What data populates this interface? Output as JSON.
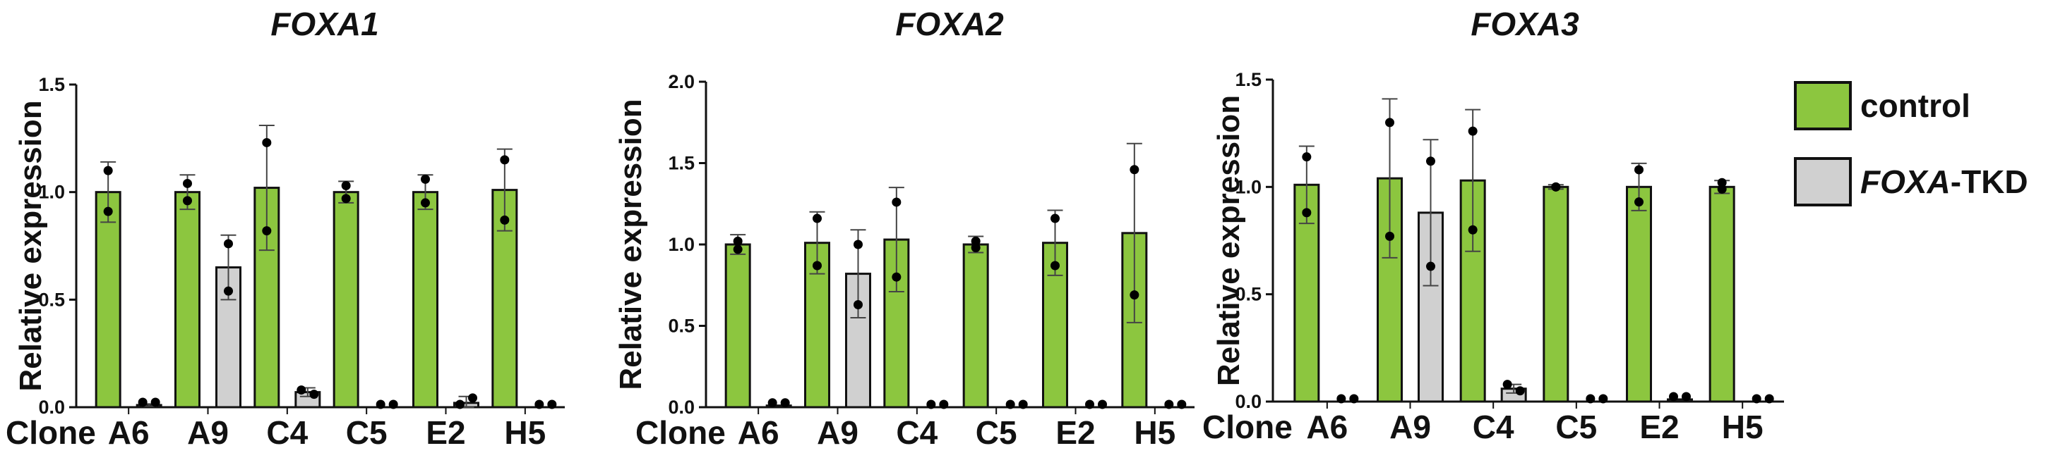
{
  "colors": {
    "control": "#8cc63f",
    "treatment": "#d0d0d0",
    "outline": "#111111"
  },
  "legend": {
    "items": [
      {
        "key": "control",
        "label_prefix": "",
        "label_suffix": "control"
      },
      {
        "key": "treatment",
        "label_prefix": "FOXA",
        "label_suffix": "-TKD"
      }
    ]
  },
  "chart_data": [
    {
      "type": "bar",
      "title": "FOXA1",
      "ylabel": "Relative expression",
      "xlabel": "Clone",
      "ylim": [
        0,
        1.5
      ],
      "yticks": [
        "0.0",
        "0.5",
        "1.0",
        "1.5"
      ],
      "categories": [
        "A6",
        "A9",
        "C4",
        "C5",
        "E2",
        "H5"
      ],
      "series": [
        {
          "name": "control",
          "values": [
            1.0,
            1.0,
            1.02,
            1.0,
            1.0,
            1.01
          ],
          "err": [
            0.14,
            0.08,
            0.29,
            0.05,
            0.08,
            0.19
          ],
          "points": [
            [
              1.1,
              0.91
            ],
            [
              1.04,
              0.96
            ],
            [
              1.23,
              0.82
            ],
            [
              1.03,
              0.97
            ],
            [
              1.06,
              0.95
            ],
            [
              1.15,
              0.87
            ]
          ]
        },
        {
          "name": "FOXA-TKD",
          "values": [
            0.01,
            0.65,
            0.07,
            0.0,
            0.02,
            0.0
          ],
          "err": [
            0.005,
            0.15,
            0.02,
            0.0,
            0.03,
            0.0
          ],
          "points": [
            [
              0.01,
              0.01
            ],
            [
              0.76,
              0.54
            ],
            [
              0.08,
              0.06
            ],
            [
              0.0,
              0.0
            ],
            [
              0.0,
              0.03
            ],
            [
              0.0,
              0.0
            ]
          ]
        }
      ]
    },
    {
      "type": "bar",
      "title": "FOXA2",
      "ylabel": "Relative expression",
      "xlabel": "Clone",
      "ylim": [
        0,
        2.0
      ],
      "yticks": [
        "0.0",
        "0.5",
        "1.0",
        "1.5",
        "2.0"
      ],
      "categories": [
        "A6",
        "A9",
        "C4",
        "C5",
        "E2",
        "H5"
      ],
      "series": [
        {
          "name": "control",
          "values": [
            1.0,
            1.01,
            1.03,
            1.0,
            1.01,
            1.07
          ],
          "err": [
            0.06,
            0.19,
            0.32,
            0.05,
            0.2,
            0.55
          ],
          "points": [
            [
              1.02,
              0.97
            ],
            [
              1.16,
              0.87
            ],
            [
              1.26,
              0.8
            ],
            [
              1.02,
              0.98
            ],
            [
              1.16,
              0.87
            ],
            [
              1.46,
              0.69
            ]
          ]
        },
        {
          "name": "FOXA-TKD",
          "values": [
            0.01,
            0.82,
            0.0,
            0.0,
            0.0,
            0.0
          ],
          "err": [
            0.0,
            0.27,
            0.0,
            0.0,
            0.0,
            0.0
          ],
          "points": [
            [
              0.01,
              0.01
            ],
            [
              1.0,
              0.63
            ],
            [
              0.0,
              0.0
            ],
            [
              0.0,
              0.0
            ],
            [
              0.0,
              0.0
            ],
            [
              0.0,
              0.0
            ]
          ]
        }
      ]
    },
    {
      "type": "bar",
      "title": "FOXA3",
      "ylabel": "Relative expression",
      "xlabel": "Clone",
      "ylim": [
        0,
        1.5
      ],
      "yticks": [
        "0.0",
        "0.5",
        "1.0",
        "1.5"
      ],
      "categories": [
        "A6",
        "A9",
        "C4",
        "C5",
        "E2",
        "H5"
      ],
      "series": [
        {
          "name": "control",
          "values": [
            1.01,
            1.04,
            1.03,
            1.0,
            1.0,
            1.0
          ],
          "err": [
            0.18,
            0.37,
            0.33,
            0.01,
            0.11,
            0.03
          ],
          "points": [
            [
              1.14,
              0.88
            ],
            [
              1.3,
              0.77
            ],
            [
              1.26,
              0.8
            ],
            [
              1.0,
              1.0
            ],
            [
              1.08,
              0.93
            ],
            [
              1.02,
              0.99
            ]
          ]
        },
        {
          "name": "FOXA-TKD",
          "values": [
            0.0,
            0.88,
            0.06,
            0.0,
            0.01,
            0.0
          ],
          "err": [
            0.0,
            0.34,
            0.02,
            0.0,
            0.0,
            0.0
          ],
          "points": [
            [
              0.0,
              0.0
            ],
            [
              1.12,
              0.63
            ],
            [
              0.08,
              0.05
            ],
            [
              0.0,
              0.0
            ],
            [
              0.01,
              0.01
            ],
            [
              0.0,
              0.0
            ]
          ]
        }
      ]
    }
  ]
}
